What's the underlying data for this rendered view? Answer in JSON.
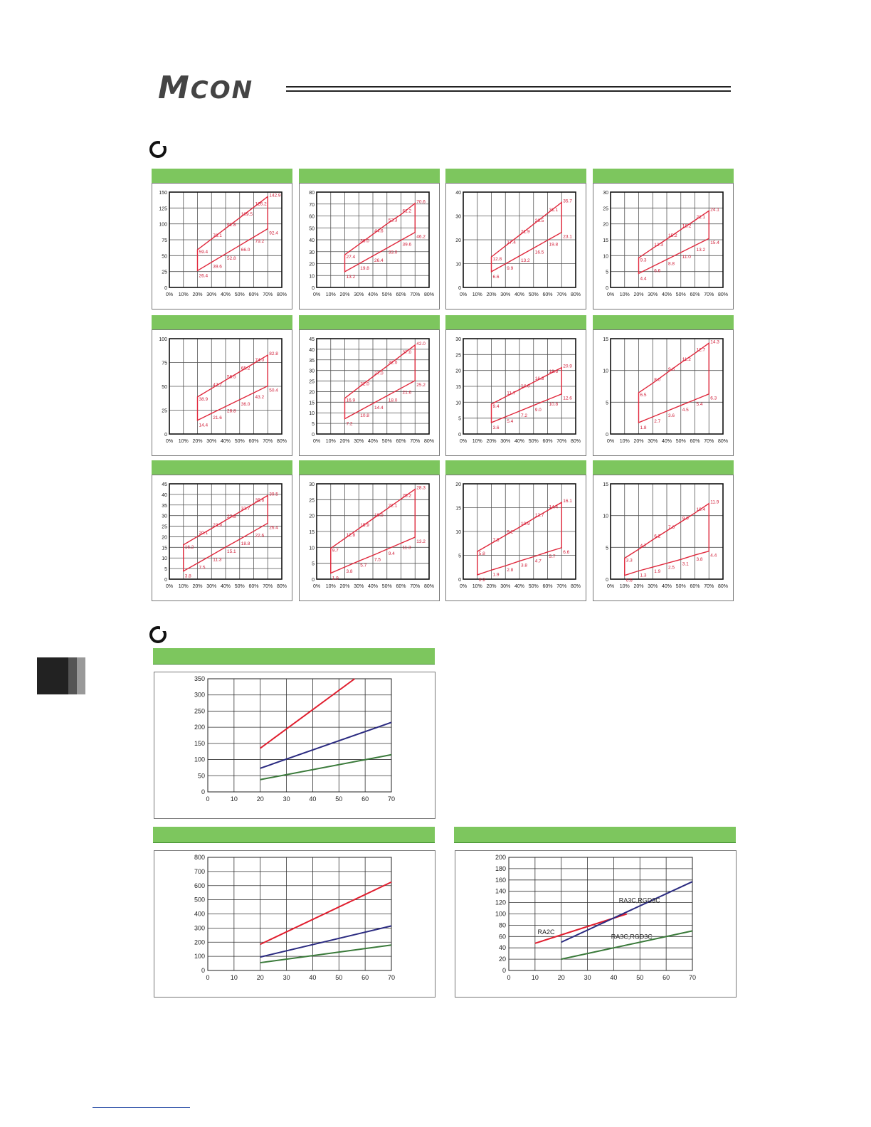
{
  "header": {
    "logo_big": "M",
    "logo_small": "CON"
  },
  "colors": {
    "accent_green": "#7dc65e",
    "upper_line": "#e0283c",
    "lower_line": "#e0283c",
    "red": "#e01e2e",
    "blue": "#2a2a80",
    "green": "#3a7a3a"
  },
  "small_chart_x_ticks": [
    "0%",
    "10%",
    "20%",
    "30%",
    "40%",
    "50%",
    "60%",
    "70%",
    "80%"
  ],
  "chart_data": [
    {
      "type": "area",
      "ylim": [
        0,
        150
      ],
      "yticks": [
        "150",
        "125",
        "100",
        "75",
        "50",
        "25",
        "0"
      ],
      "x": [
        20,
        30,
        40,
        50,
        60,
        70
      ],
      "upper": [
        59.4,
        76.1,
        92.8,
        109.5,
        126.2,
        142.9
      ],
      "lower": [
        26.4,
        39.6,
        52.8,
        66.0,
        79.2,
        92.4
      ],
      "upper_labels": [
        "59.4",
        "76.1",
        "92.8",
        "109.5",
        "126.2",
        "142.9"
      ],
      "lower_labels": [
        "26.4",
        "39.6",
        "52.8",
        "66.0",
        "79.2",
        "92.4"
      ]
    },
    {
      "type": "area",
      "ylim": [
        0,
        80
      ],
      "yticks": [
        "80",
        "70",
        "60",
        "50",
        "40",
        "30",
        "20",
        "10",
        "0"
      ],
      "x": [
        20,
        30,
        40,
        50,
        60,
        70
      ],
      "upper": [
        27.4,
        36.0,
        44.6,
        53.3,
        61.2,
        70.6
      ],
      "lower": [
        13.2,
        19.8,
        26.4,
        33.0,
        39.6,
        46.2
      ],
      "upper_labels": [
        "27.4",
        "36.0",
        "44.6",
        "53.3",
        "61.2",
        "70.6"
      ],
      "lower_labels": [
        "13.2",
        "19.8",
        "26.4",
        "33.0",
        "39.6",
        "46.2"
      ]
    },
    {
      "type": "area",
      "ylim": [
        0,
        40
      ],
      "yticks": [
        "40",
        "30",
        "20",
        "10",
        "0"
      ],
      "x": [
        20,
        30,
        40,
        50,
        60,
        70
      ],
      "upper": [
        12.8,
        17.4,
        21.9,
        26.5,
        31.1,
        35.7
      ],
      "lower": [
        6.6,
        9.9,
        13.2,
        16.5,
        19.8,
        23.1
      ],
      "upper_labels": [
        "12.8",
        "17.4",
        "21.9",
        "26.5",
        "31.1",
        "35.7"
      ],
      "lower_labels": [
        "6.6",
        "9.9",
        "13.2",
        "16.5",
        "19.8",
        "23.1"
      ]
    },
    {
      "type": "area",
      "ylim": [
        0,
        30
      ],
      "yticks": [
        "30",
        "25",
        "20",
        "15",
        "10",
        "5",
        "0"
      ],
      "x": [
        20,
        30,
        40,
        50,
        60,
        70
      ],
      "upper": [
        9.3,
        12.3,
        15.2,
        18.2,
        21.1,
        24.1
      ],
      "lower": [
        4.4,
        6.6,
        8.8,
        11.0,
        13.2,
        15.4
      ],
      "upper_labels": [
        "9.3",
        "12.3",
        "15.2",
        "18.2",
        "21.1",
        "24.1"
      ],
      "lower_labels": [
        "4.4",
        "6.6",
        "8.8",
        "11.0",
        "13.2",
        "15.4"
      ]
    },
    {
      "type": "area",
      "ylim": [
        0,
        100
      ],
      "yticks": [
        "100",
        "75",
        "50",
        "25",
        "0"
      ],
      "x": [
        20,
        30,
        40,
        50,
        60,
        70
      ],
      "upper": [
        38.9,
        47.7,
        56.5,
        65.2,
        74.0,
        82.8
      ],
      "lower": [
        14.4,
        21.6,
        28.8,
        36.0,
        43.2,
        50.4
      ],
      "upper_labels": [
        "38.9",
        "47.7",
        "56.5",
        "65.2",
        "74.0",
        "82.8"
      ],
      "lower_labels": [
        "14.4",
        "21.6",
        "28.8",
        "36.0",
        "43.2",
        "50.4"
      ]
    },
    {
      "type": "area",
      "ylim": [
        0,
        45
      ],
      "yticks": [
        "45",
        "40",
        "35",
        "30",
        "25",
        "20",
        "15",
        "10",
        "5",
        "0"
      ],
      "x": [
        20,
        30,
        40,
        50,
        60,
        70
      ],
      "upper": [
        16.9,
        22.0,
        27.0,
        32.0,
        37.0,
        42.0
      ],
      "lower": [
        7.2,
        10.8,
        14.4,
        18.0,
        21.6,
        25.2
      ],
      "upper_labels": [
        "16.9",
        "22.0",
        "27.0",
        "32.0",
        "37.0",
        "42.0"
      ],
      "lower_labels": [
        "7.2",
        "10.8",
        "14.4",
        "18.0",
        "21.6",
        "25.2"
      ]
    },
    {
      "type": "area",
      "ylim": [
        0,
        30
      ],
      "yticks": [
        "30",
        "25",
        "20",
        "15",
        "10",
        "5",
        "0"
      ],
      "x": [
        20,
        30,
        40,
        50,
        60,
        70
      ],
      "upper": [
        9.4,
        11.7,
        14.0,
        16.3,
        18.6,
        20.9
      ],
      "lower": [
        3.6,
        5.4,
        7.2,
        9.0,
        10.8,
        12.6
      ],
      "upper_labels": [
        "9.4",
        "11.7",
        "14.0",
        "16.3",
        "18.6",
        "20.9"
      ],
      "lower_labels": [
        "3.6",
        "5.4",
        "7.2",
        "9.0",
        "10.8",
        "12.6"
      ]
    },
    {
      "type": "area",
      "ylim": [
        0,
        15
      ],
      "yticks": [
        "15",
        "10",
        "5",
        "0"
      ],
      "x": [
        20,
        30,
        40,
        50,
        60,
        70
      ],
      "upper": [
        6.5,
        8.0,
        9.6,
        11.2,
        12.7,
        14.3
      ],
      "lower": [
        1.8,
        2.7,
        3.6,
        4.5,
        5.4,
        6.3
      ],
      "upper_labels": [
        "6.5",
        "8.0",
        "9.6",
        "11.2",
        "12.7",
        "14.3"
      ],
      "lower_labels": [
        "1.8",
        "2.7",
        "3.6",
        "4.5",
        "5.4",
        "6.3"
      ]
    },
    {
      "type": "area",
      "ylim": [
        0,
        45
      ],
      "yticks": [
        "45",
        "40",
        "35",
        "30",
        "25",
        "20",
        "15",
        "10",
        "5",
        "0"
      ],
      "x": [
        10,
        20,
        30,
        40,
        50,
        60,
        70
      ],
      "upper": [
        16.2,
        20.1,
        23.9,
        27.8,
        31.7,
        35.6,
        39.5
      ],
      "lower": [
        3.8,
        7.5,
        11.3,
        15.1,
        18.8,
        22.6,
        26.4
      ],
      "upper_labels": [
        "16.2",
        "20.1",
        "23.9",
        "27.8",
        "31.7",
        "35.6",
        "39.5"
      ],
      "lower_labels": [
        "3.8",
        "7.5",
        "11.3",
        "15.1",
        "18.8",
        "22.6",
        "26.4"
      ]
    },
    {
      "type": "area",
      "ylim": [
        0,
        30
      ],
      "yticks": [
        "30",
        "25",
        "20",
        "15",
        "10",
        "5",
        "0"
      ],
      "x": [
        10,
        20,
        30,
        40,
        50,
        60,
        70
      ],
      "upper": [
        9.7,
        12.8,
        15.9,
        19.0,
        22.1,
        25.2,
        28.3
      ],
      "lower": [
        1.9,
        3.8,
        5.7,
        7.5,
        9.4,
        11.3,
        13.2
      ],
      "upper_labels": [
        "9.7",
        "12.8",
        "15.9",
        "19.0",
        "22.1",
        "25.2",
        "28.3"
      ],
      "lower_labels": [
        "1.9",
        "3.8",
        "5.7",
        "7.5",
        "9.4",
        "11.3",
        "13.2"
      ]
    },
    {
      "type": "area",
      "ylim": [
        0,
        20
      ],
      "yticks": [
        "20",
        "15",
        "10",
        "5",
        "0"
      ],
      "x": [
        10,
        20,
        30,
        40,
        50,
        60,
        70
      ],
      "upper": [
        5.8,
        7.5,
        9.2,
        10.9,
        12.7,
        14.4,
        16.1
      ],
      "lower": [
        0.9,
        1.9,
        2.8,
        3.8,
        4.7,
        5.7,
        6.6
      ],
      "upper_labels": [
        "5.8",
        "7.5",
        "9.2",
        "10.9",
        "12.7",
        "14.4",
        "16.1"
      ],
      "lower_labels": [
        "0.9",
        "1.9",
        "2.8",
        "3.8",
        "4.7",
        "5.7",
        "6.6"
      ]
    },
    {
      "type": "area",
      "ylim": [
        0,
        15
      ],
      "yticks": [
        "15",
        "10",
        "5",
        "0"
      ],
      "x": [
        10,
        20,
        30,
        40,
        50,
        60,
        70
      ],
      "upper": [
        3.3,
        4.7,
        6.2,
        7.6,
        9.0,
        10.4,
        11.9
      ],
      "lower": [
        0.6,
        1.3,
        1.9,
        2.5,
        3.1,
        3.8,
        4.4
      ],
      "upper_labels": [
        "3.3",
        "4.7",
        "6.2",
        "7.6",
        "9.0",
        "10.4",
        "11.9"
      ],
      "lower_labels": [
        "0.6",
        "1.3",
        "1.9",
        "2.5",
        "3.1",
        "3.8",
        "4.4"
      ]
    },
    {
      "type": "line",
      "ylim": [
        0,
        350
      ],
      "xlim": [
        0,
        70
      ],
      "yticks": [
        "350",
        "300",
        "250",
        "200",
        "150",
        "100",
        "50",
        "0"
      ],
      "xticks": [
        "0",
        "10",
        "20",
        "30",
        "40",
        "50",
        "60",
        "70"
      ],
      "series": [
        {
          "color": "#e01e2e",
          "x": [
            20,
            56
          ],
          "y": [
            135,
            350
          ]
        },
        {
          "color": "#2a2a80",
          "x": [
            20,
            70
          ],
          "y": [
            73,
            215
          ]
        },
        {
          "color": "#3a7a3a",
          "x": [
            20,
            70
          ],
          "y": [
            38,
            115
          ]
        }
      ]
    },
    {
      "type": "line",
      "ylim": [
        0,
        800
      ],
      "xlim": [
        0,
        70
      ],
      "yticks": [
        "800",
        "700",
        "600",
        "500",
        "400",
        "300",
        "200",
        "100",
        "0"
      ],
      "xticks": [
        "0",
        "10",
        "20",
        "30",
        "40",
        "50",
        "60",
        "70"
      ],
      "series": [
        {
          "color": "#e01e2e",
          "x": [
            20,
            70
          ],
          "y": [
            185,
            625
          ]
        },
        {
          "color": "#2a2a80",
          "x": [
            20,
            70
          ],
          "y": [
            95,
            315
          ]
        },
        {
          "color": "#3a7a3a",
          "x": [
            20,
            70
          ],
          "y": [
            55,
            180
          ]
        }
      ]
    },
    {
      "type": "line",
      "ylim": [
        0,
        200
      ],
      "xlim": [
        0,
        70
      ],
      "yticks": [
        "200",
        "180",
        "160",
        "140",
        "120",
        "100",
        "80",
        "60",
        "40",
        "20",
        "0"
      ],
      "xticks": [
        "0",
        "10",
        "20",
        "30",
        "40",
        "50",
        "60",
        "70"
      ],
      "series": [
        {
          "name": "RA2C",
          "color": "#e01e2e",
          "x": [
            10,
            45
          ],
          "y": [
            48,
            100
          ]
        },
        {
          "name": "RA3C,RGD3C",
          "color": "#2a2a80",
          "x": [
            20,
            70
          ],
          "y": [
            50,
            157
          ]
        },
        {
          "name": "RA3C,RGD3C",
          "color": "#3a7a3a",
          "x": [
            20,
            70
          ],
          "y": [
            20,
            70
          ]
        }
      ]
    }
  ]
}
